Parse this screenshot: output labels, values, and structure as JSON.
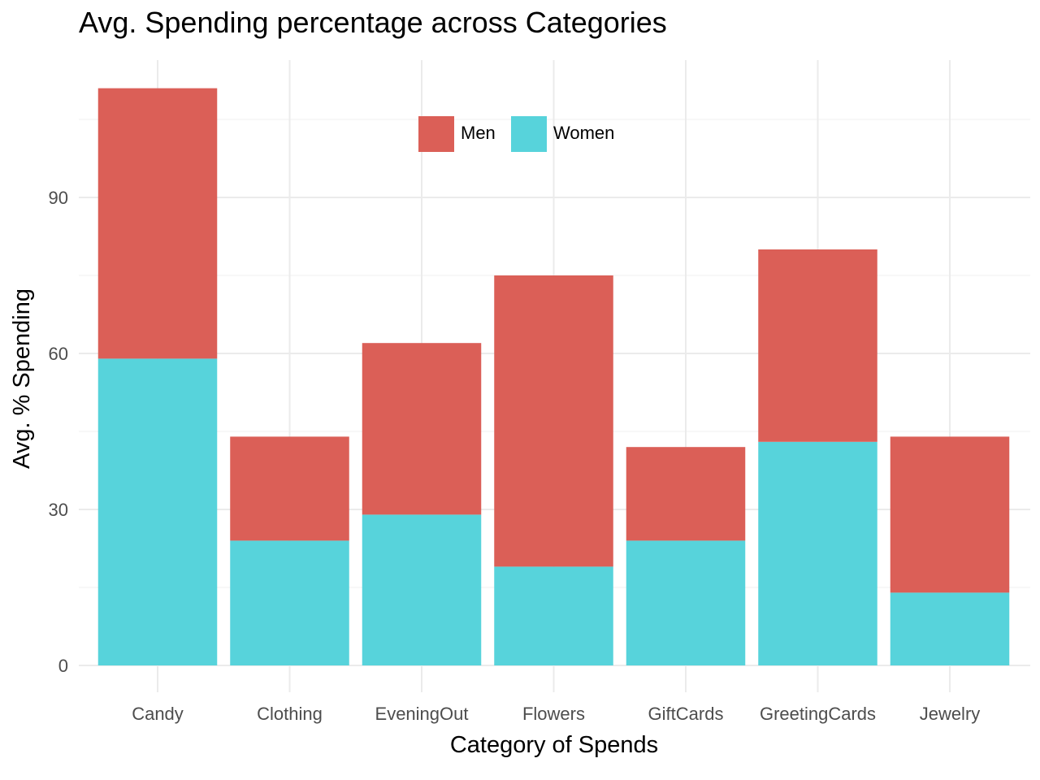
{
  "chart_data": {
    "type": "bar",
    "stacked": true,
    "title": "Avg. Spending percentage across Categories",
    "xlabel": "Category of Spends",
    "ylabel": "Avg. % Spending",
    "categories": [
      "Candy",
      "Clothing",
      "EveningOut",
      "Flowers",
      "GiftCards",
      "GreetingCards",
      "Jewelry"
    ],
    "series": [
      {
        "name": "Women",
        "color": "#57D3DB",
        "values": [
          59,
          24,
          29,
          19,
          24,
          43,
          14
        ]
      },
      {
        "name": "Men",
        "color": "#DB5F57",
        "values": [
          52,
          20,
          33,
          56,
          18,
          37,
          30
        ]
      }
    ],
    "legend_order": [
      "Men",
      "Women"
    ],
    "legend_position": "top-center, inside plot",
    "ylim": [
      0,
      111
    ],
    "yticks": [
      0,
      30,
      60,
      90
    ],
    "grid": true,
    "background": "#ffffff",
    "grid_color": "#EBEBEB"
  }
}
